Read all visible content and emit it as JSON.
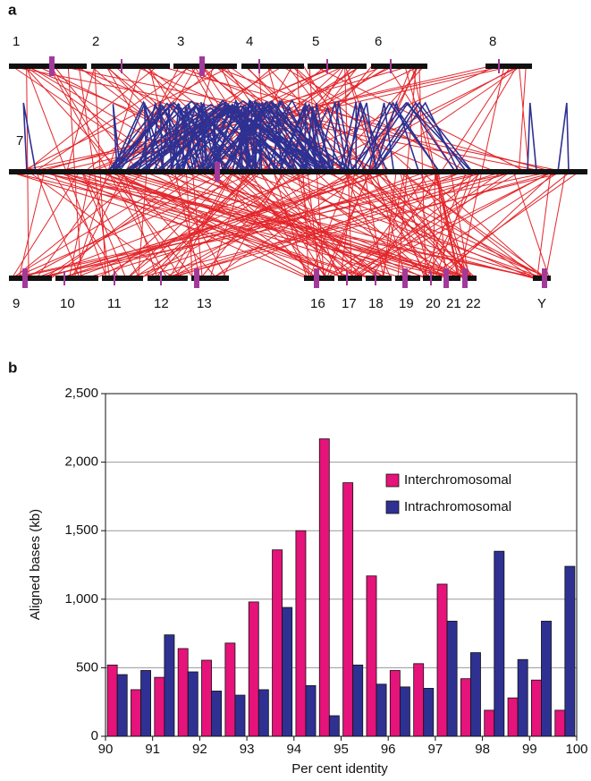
{
  "figure_a": {
    "label": "a",
    "chromosomes": [
      "1",
      "2",
      "3",
      "4",
      "5",
      "6",
      "8",
      "7",
      "9",
      "10",
      "11",
      "12",
      "13",
      "16",
      "17",
      "18",
      "19",
      "20",
      "21",
      "22",
      "Y"
    ]
  },
  "chart_data": {
    "type": "bar",
    "panel_label": "b",
    "x_label": "Per cent identity",
    "y_label": "Aligned bases (kb)",
    "x": [
      90.25,
      90.75,
      91.25,
      91.75,
      92.25,
      92.75,
      93.25,
      93.75,
      94.25,
      94.75,
      95.25,
      95.75,
      96.25,
      96.75,
      97.25,
      97.75,
      98.25,
      98.75,
      99.25,
      99.75
    ],
    "series": [
      {
        "name": "Interchromosomal",
        "color": "#e5137a",
        "values": [
          520,
          340,
          430,
          640,
          555,
          680,
          980,
          1360,
          1500,
          2170,
          1850,
          1170,
          480,
          530,
          1110,
          420,
          190,
          280,
          410,
          190
        ]
      },
      {
        "name": "Intrachromosomal",
        "color": "#2e3192",
        "values": [
          450,
          480,
          740,
          470,
          330,
          300,
          340,
          940,
          370,
          150,
          520,
          380,
          360,
          350,
          840,
          610,
          1350,
          560,
          840,
          1240
        ]
      }
    ],
    "xlim": [
      90,
      100
    ],
    "xticks": [
      90,
      91,
      92,
      93,
      94,
      95,
      96,
      97,
      98,
      99,
      100
    ],
    "ylim": [
      0,
      2500
    ],
    "yticks": [
      0,
      500,
      {
        "value": 1000,
        "label": "1,000"
      },
      {
        "value": 1500,
        "label": "1,500"
      },
      {
        "value": 2000,
        "label": "2,000"
      },
      {
        "value": 2500,
        "label": "2,500"
      }
    ],
    "grid": true,
    "legend": "upper right"
  }
}
